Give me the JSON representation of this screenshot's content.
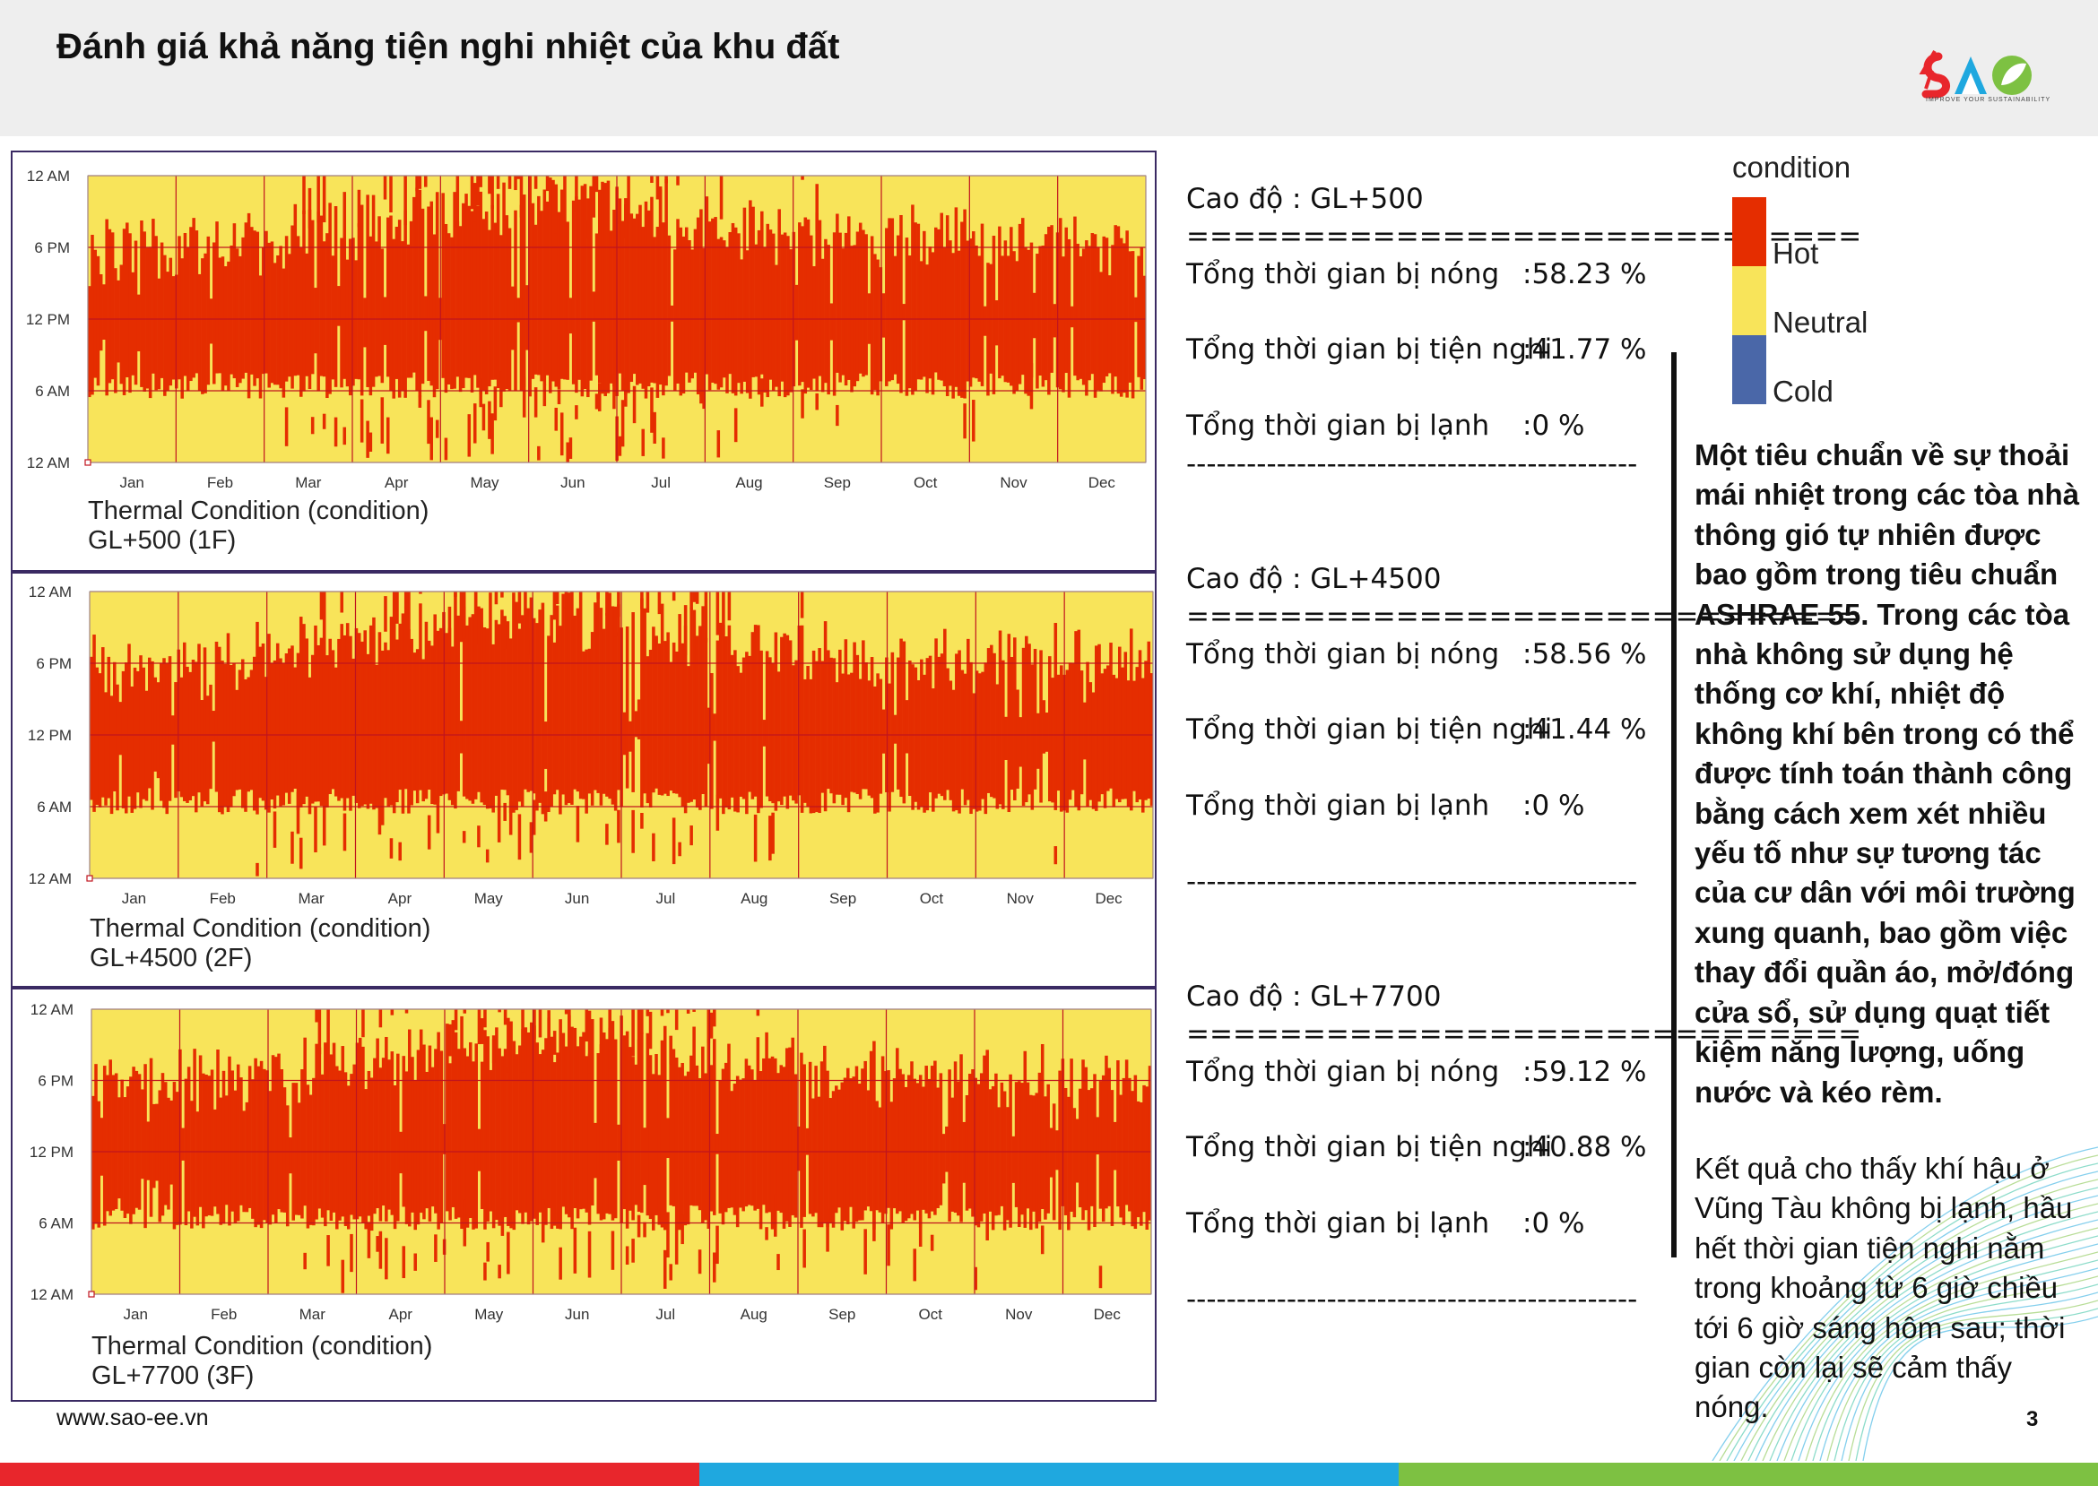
{
  "header": {
    "title": "Đánh giá khả năng tiện nghi nhiệt của khu đất"
  },
  "logo": {
    "tagline": "IMPROVE YOUR SUSTAINABILITY"
  },
  "chart_common": {
    "y_ticks": [
      "12 AM",
      "6 PM",
      "12 PM",
      "6 AM",
      "12 AM"
    ],
    "months": [
      "Jan",
      "Feb",
      "Mar",
      "Apr",
      "May",
      "Jun",
      "Jul",
      "Aug",
      "Sep",
      "Oct",
      "Nov",
      "Dec"
    ],
    "caption_title": "Thermal Condition (condition)"
  },
  "chart_data": [
    {
      "type": "heatmap",
      "title": "Thermal Condition (condition)",
      "subtitle": "GL+500 (1F)",
      "x": "month of year (Jan–Dec)",
      "y": "hour of day (12 AM – 12 AM)",
      "categories": [
        "Hot",
        "Neutral",
        "Cold"
      ],
      "summary": {
        "hot_pct": 58.23,
        "neutral_pct": 41.77,
        "cold_pct": 0
      },
      "hot_band_hours": [
        6,
        18
      ]
    },
    {
      "type": "heatmap",
      "title": "Thermal Condition (condition)",
      "subtitle": "GL+4500 (2F)",
      "x": "month of year (Jan–Dec)",
      "y": "hour of day (12 AM – 12 AM)",
      "categories": [
        "Hot",
        "Neutral",
        "Cold"
      ],
      "summary": {
        "hot_pct": 58.56,
        "neutral_pct": 41.44,
        "cold_pct": 0
      },
      "hot_band_hours": [
        6,
        18
      ]
    },
    {
      "type": "heatmap",
      "title": "Thermal Condition (condition)",
      "subtitle": "GL+7700 (3F)",
      "x": "month of year (Jan–Dec)",
      "y": "hour of day (12 AM – 12 AM)",
      "categories": [
        "Hot",
        "Neutral",
        "Cold"
      ],
      "summary": {
        "hot_pct": 59.12,
        "neutral_pct": 40.88,
        "cold_pct": 0
      },
      "hot_band_hours": [
        6,
        18
      ]
    }
  ],
  "charts": [
    {
      "subtitle": "GL+500 (1F)"
    },
    {
      "subtitle": "GL+4500 (2F)"
    },
    {
      "subtitle": "GL+7700 (3F)"
    }
  ],
  "stats": [
    {
      "level": "Cao độ : GL+500",
      "sep_top": "=============================",
      "hot_label": "Tổng thời gian bị nóng",
      "hot_val": ":58.23 %",
      "neutral_label": "Tổng thời gian bị tiện nghi",
      "neutral_val": ":41.77 %",
      "cold_label": "Tổng thời gian bị lạnh",
      "cold_val": ":0 %",
      "sep_bottom": "---------------------------------------------"
    },
    {
      "level": "Cao độ : GL+4500",
      "sep_top": "=============================",
      "hot_label": "Tổng thời gian bị nóng",
      "hot_val": ":58.56 %",
      "neutral_label": "Tổng thời gian bị tiện nghi",
      "neutral_val": ":41.44 %",
      "cold_label": "Tổng thời gian bị lạnh",
      "cold_val": ":0 %",
      "sep_bottom": "---------------------------------------------"
    },
    {
      "level": "Cao độ : GL+7700",
      "sep_top": "=============================",
      "hot_label": "Tổng thời gian bị nóng",
      "hot_val": ":59.12 %",
      "neutral_label": "Tổng thời gian bị tiện nghi",
      "neutral_val": ":40.88 %",
      "cold_label": "Tổng thời gian bị lạnh",
      "cold_val": ":0 %",
      "sep_bottom": "---------------------------------------------"
    }
  ],
  "legend": {
    "title": "condition",
    "items": [
      {
        "label": "Hot",
        "color": "#e52d00"
      },
      {
        "label": "Neutral",
        "color": "#f8e45a"
      },
      {
        "label": "Cold",
        "color": "#4a67a8"
      }
    ]
  },
  "description": "Một tiêu chuẩn về sự thoải mái nhiệt trong các tòa nhà thông gió tự nhiên được bao gồm trong tiêu chuẩn ASHRAE 55. Trong các tòa nhà không sử dụng hệ thống cơ khí, nhiệt độ không khí bên trong có thể được tính toán thành công bằng cách xem xét nhiều yếu tố như sự tương tác của cư dân với môi trường xung quanh, bao gồm việc thay đổi quần áo, mở/đóng cửa sổ, sử dụng quạt tiết kiệm năng lượng, uống nước và kéo rèm.",
  "result": "Kết quả cho thấy khí hậu ở Vũng Tàu không bị lạnh, hầu hết thời gian tiện nghi nằm trong khoảng từ 6 giờ chiều tới 6 giờ sáng hôm sau; thời gian còn lại sẽ cảm thấy nóng.",
  "footer": {
    "website": "www.sao-ee.vn",
    "page": "3"
  },
  "colors": {
    "hot": "#e52d00",
    "neutral": "#f8e45a",
    "grid": "#c0141e",
    "frame": "#3a2a63",
    "bar_red": "#e8262c",
    "bar_blue": "#1fa8df",
    "bar_green": "#7dc142"
  }
}
